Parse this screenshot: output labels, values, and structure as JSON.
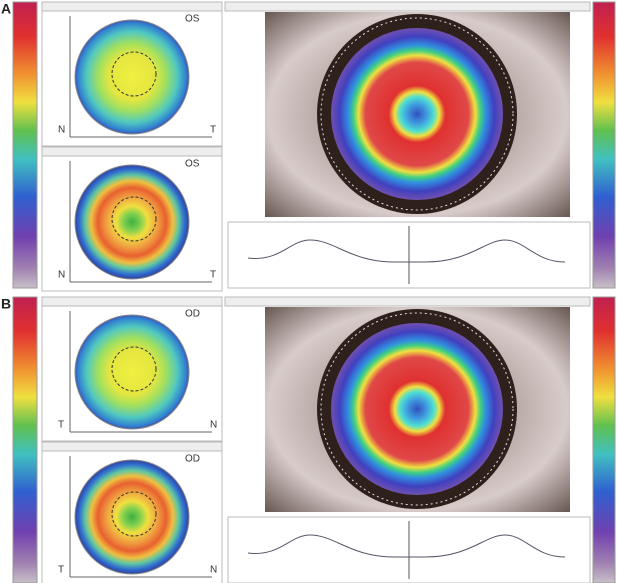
{
  "panels": [
    {
      "label": "A",
      "top_map": {
        "eye": "OS",
        "left": "N",
        "right": "T"
      },
      "bottom_map": {
        "eye": "OS",
        "left": "N",
        "right": "T"
      }
    },
    {
      "label": "B",
      "top_map": {
        "eye": "OD",
        "left": "T",
        "right": "N"
      },
      "bottom_map": {
        "eye": "OD",
        "left": "T",
        "right": "N"
      }
    }
  ]
}
